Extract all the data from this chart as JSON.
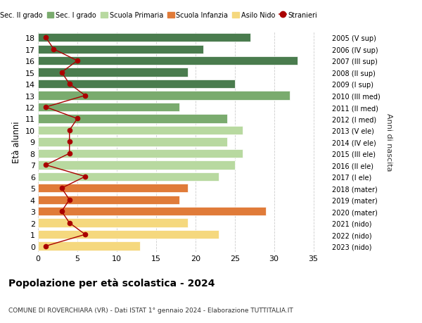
{
  "ages": [
    18,
    17,
    16,
    15,
    14,
    13,
    12,
    11,
    10,
    9,
    8,
    7,
    6,
    5,
    4,
    3,
    2,
    1,
    0
  ],
  "right_labels": [
    "2005 (V sup)",
    "2006 (IV sup)",
    "2007 (III sup)",
    "2008 (II sup)",
    "2009 (I sup)",
    "2010 (III med)",
    "2011 (II med)",
    "2012 (I med)",
    "2013 (V ele)",
    "2014 (IV ele)",
    "2015 (III ele)",
    "2016 (II ele)",
    "2017 (I ele)",
    "2018 (mater)",
    "2019 (mater)",
    "2020 (mater)",
    "2021 (nido)",
    "2022 (nido)",
    "2023 (nido)"
  ],
  "bar_values": [
    27,
    21,
    33,
    19,
    25,
    32,
    18,
    24,
    26,
    24,
    26,
    25,
    23,
    19,
    18,
    29,
    19,
    23,
    13
  ],
  "bar_colors": [
    "#4a7c4e",
    "#4a7c4e",
    "#4a7c4e",
    "#4a7c4e",
    "#4a7c4e",
    "#7aab6e",
    "#7aab6e",
    "#7aab6e",
    "#b8d9a0",
    "#b8d9a0",
    "#b8d9a0",
    "#b8d9a0",
    "#b8d9a0",
    "#e07b39",
    "#e07b39",
    "#e07b39",
    "#f5d87e",
    "#f5d87e",
    "#f5d87e"
  ],
  "stranieri_x": [
    1,
    2,
    5,
    3,
    4,
    6,
    1,
    5,
    4,
    4,
    4,
    1,
    6,
    3,
    4,
    3,
    4,
    6,
    1
  ],
  "title": "Popolazione per età scolastica - 2024",
  "subtitle": "COMUNE DI ROVERCHIARA (VR) - Dati ISTAT 1° gennaio 2024 - Elaborazione TUTTITALIA.IT",
  "ylabel": "Età alunni",
  "right_ylabel": "Anni di nascita",
  "xlim": [
    0,
    37
  ],
  "xticks": [
    0,
    5,
    10,
    15,
    20,
    25,
    30,
    35
  ],
  "legend_items": [
    {
      "label": "Sec. II grado",
      "color": "#4a7c4e"
    },
    {
      "label": "Sec. I grado",
      "color": "#7aab6e"
    },
    {
      "label": "Scuola Primaria",
      "color": "#b8d9a0"
    },
    {
      "label": "Scuola Infanzia",
      "color": "#e07b39"
    },
    {
      "label": "Asilo Nido",
      "color": "#f5d87e"
    },
    {
      "label": "Stranieri",
      "color": "#aa0000"
    }
  ],
  "bg_color": "#ffffff",
  "grid_color": "#cccccc",
  "bar_height": 0.75
}
